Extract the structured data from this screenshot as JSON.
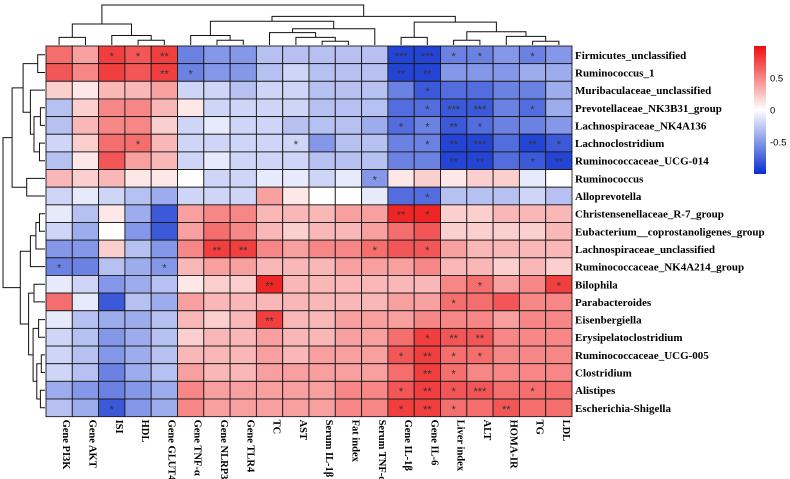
{
  "chart_data": {
    "type": "heatmap",
    "title": "",
    "rows": [
      "Firmicutes_unclassified",
      "Ruminococcus_1",
      "Muribaculaceae_unclassified",
      "Prevotellaceae_NK3B31_group",
      "Lachnospiraceae_NK4A136",
      "Lachnoclostridium",
      "Ruminococcaceae_UCG-014",
      "Ruminococcus",
      "Alloprevotella",
      "Christensenellaceae_R-7_group",
      "Eubacterium__coprostanoligenes_group",
      "Lachnospiraceae_unclassified",
      "Ruminococcaceae_NK4A214_group",
      "Bilophila",
      "Parabacteroides",
      "Eisenbergiella",
      "Erysipelatoclostridium",
      "Ruminococcaceae_UCG-005",
      "Clostridium",
      "Alistipes",
      "Escherichia-Shigella"
    ],
    "columns": [
      "Gene PI3K",
      "Gene AKT",
      "ISI",
      "HDL",
      "Gene GLUT4",
      "Gene TNF-α",
      "Gene NLRP3",
      "Gene TLR4",
      "TC",
      "AST",
      "Serum IL-1β",
      "Fat index",
      "Serum TNF-α",
      "Gene IL-1β",
      "Gene IL-6",
      "Liver index",
      "ALT",
      "HOMA-IR",
      "TG",
      "LDL"
    ],
    "values": [
      [
        0.6,
        0.4,
        0.8,
        0.7,
        0.8,
        -0.6,
        -0.5,
        -0.5,
        -0.3,
        -0.3,
        -0.3,
        -0.3,
        -0.3,
        -0.9,
        -0.9,
        -0.6,
        -0.6,
        -0.5,
        -0.6,
        -0.5
      ],
      [
        0.7,
        0.5,
        0.8,
        0.7,
        0.8,
        -0.6,
        -0.5,
        -0.5,
        -0.3,
        -0.2,
        -0.3,
        -0.3,
        -0.3,
        -0.9,
        -0.9,
        -0.5,
        -0.5,
        -0.5,
        -0.4,
        -0.4
      ],
      [
        0.2,
        0.1,
        0.3,
        0.3,
        0.4,
        -0.2,
        -0.2,
        -0.3,
        -0.2,
        -0.2,
        -0.3,
        -0.3,
        -0.3,
        -0.6,
        -0.8,
        -0.7,
        -0.7,
        -0.6,
        -0.6,
        -0.4
      ],
      [
        -0.3,
        0.2,
        0.5,
        0.5,
        0.3,
        0.1,
        -0.2,
        -0.2,
        -0.2,
        -0.2,
        -0.3,
        -0.3,
        -0.3,
        -0.7,
        -0.7,
        -0.8,
        -0.8,
        -0.6,
        -0.7,
        -0.4
      ],
      [
        -0.3,
        0.3,
        0.5,
        0.5,
        0.2,
        -0.2,
        -0.1,
        -0.2,
        -0.2,
        -0.3,
        -0.3,
        -0.3,
        -0.4,
        -0.7,
        -0.6,
        -0.8,
        -0.7,
        -0.6,
        -0.6,
        -0.5
      ],
      [
        -0.2,
        0.2,
        0.6,
        0.6,
        0.3,
        -0.2,
        -0.2,
        -0.2,
        -0.2,
        -0.2,
        -0.5,
        -0.3,
        -0.3,
        -0.6,
        -0.6,
        -0.9,
        -0.9,
        -0.7,
        -0.9,
        -0.8
      ],
      [
        -0.3,
        0.1,
        0.7,
        0.4,
        0.3,
        -0.2,
        -0.1,
        -0.2,
        -0.2,
        -0.2,
        -0.3,
        -0.3,
        -0.3,
        -0.6,
        -0.6,
        -0.9,
        -0.9,
        -0.7,
        -0.8,
        -0.9
      ],
      [
        0.3,
        0.2,
        0.3,
        0.1,
        0.1,
        0.0,
        -0.2,
        -0.2,
        -0.1,
        -0.1,
        -0.2,
        -0.1,
        -0.5,
        0.1,
        0.2,
        0.1,
        0.2,
        0.2,
        -0.1,
        0.0
      ],
      [
        -0.2,
        -0.1,
        -0.2,
        -0.3,
        -0.4,
        -0.2,
        -0.2,
        -0.2,
        0.4,
        0.1,
        0.0,
        0.0,
        -0.1,
        -0.7,
        -0.7,
        -0.3,
        -0.3,
        -0.3,
        -0.2,
        -0.3
      ],
      [
        -0.1,
        -0.3,
        0.1,
        -0.4,
        -0.8,
        0.4,
        0.5,
        0.5,
        0.3,
        0.3,
        0.3,
        0.4,
        0.4,
        0.9,
        0.9,
        0.2,
        0.2,
        0.3,
        0.3,
        0.3
      ],
      [
        -0.2,
        -0.4,
        0.0,
        -0.5,
        -0.8,
        0.4,
        0.6,
        0.5,
        0.3,
        0.2,
        0.3,
        0.3,
        0.4,
        0.6,
        0.7,
        0.2,
        0.2,
        0.2,
        0.2,
        0.3
      ],
      [
        -0.5,
        -0.5,
        0.2,
        -0.3,
        -0.5,
        0.5,
        0.8,
        0.8,
        0.5,
        0.4,
        0.5,
        0.5,
        0.6,
        0.7,
        0.7,
        0.4,
        0.3,
        0.3,
        0.3,
        0.3
      ],
      [
        -0.6,
        -0.6,
        -0.3,
        -0.4,
        -0.5,
        0.3,
        0.4,
        0.4,
        0.3,
        0.3,
        0.3,
        0.4,
        0.4,
        0.4,
        0.5,
        0.3,
        0.3,
        0.2,
        0.3,
        0.2
      ],
      [
        -0.1,
        -0.2,
        -0.5,
        -0.4,
        -0.3,
        0.1,
        0.2,
        0.2,
        0.9,
        0.3,
        0.3,
        0.3,
        0.3,
        0.3,
        0.3,
        0.5,
        0.6,
        0.4,
        0.5,
        0.8
      ],
      [
        0.6,
        -0.1,
        -0.8,
        -0.3,
        -0.4,
        0.4,
        0.3,
        0.3,
        0.3,
        0.3,
        0.3,
        0.3,
        0.3,
        0.4,
        0.4,
        0.6,
        0.6,
        0.7,
        0.5,
        0.5
      ],
      [
        -0.1,
        -0.3,
        -0.4,
        -0.4,
        -0.3,
        0.3,
        0.2,
        0.3,
        0.8,
        0.3,
        0.3,
        0.4,
        0.4,
        0.4,
        0.5,
        0.5,
        0.5,
        0.4,
        0.5,
        0.5
      ],
      [
        -0.2,
        -0.3,
        -0.5,
        -0.4,
        -0.3,
        0.2,
        0.3,
        0.3,
        0.4,
        0.3,
        0.3,
        0.4,
        0.4,
        0.6,
        0.8,
        0.7,
        0.7,
        0.5,
        0.5,
        0.5
      ],
      [
        -0.2,
        -0.3,
        -0.5,
        -0.4,
        -0.3,
        0.3,
        0.3,
        0.3,
        0.4,
        0.3,
        0.4,
        0.4,
        0.4,
        0.7,
        0.8,
        0.6,
        0.6,
        0.5,
        0.5,
        0.5
      ],
      [
        -0.2,
        -0.3,
        -0.6,
        -0.4,
        -0.3,
        0.4,
        0.3,
        0.3,
        0.4,
        0.4,
        0.4,
        0.4,
        0.4,
        0.6,
        0.8,
        0.6,
        0.5,
        0.5,
        0.5,
        0.5
      ],
      [
        -0.4,
        -0.5,
        -0.6,
        -0.5,
        -0.4,
        0.5,
        0.4,
        0.4,
        0.4,
        0.4,
        0.4,
        0.5,
        0.5,
        0.7,
        0.8,
        0.7,
        0.7,
        0.6,
        0.6,
        0.6
      ],
      [
        -0.3,
        -0.4,
        -0.8,
        -0.5,
        -0.4,
        0.5,
        0.4,
        0.4,
        0.4,
        0.4,
        0.4,
        0.5,
        0.5,
        0.8,
        0.8,
        0.6,
        0.6,
        0.7,
        0.6,
        0.6
      ]
    ],
    "stars": [
      [
        "",
        "",
        "*",
        "*",
        "**",
        "",
        "",
        "",
        "",
        "",
        "",
        "",
        "",
        "***",
        "***",
        "*",
        "*",
        "",
        "*",
        ""
      ],
      [
        "",
        "",
        "",
        "",
        "**",
        "*",
        "",
        "",
        "",
        "",
        "",
        "",
        "",
        "**",
        "**",
        "",
        "",
        "",
        "",
        ""
      ],
      [
        "",
        "",
        "",
        "",
        "",
        "",
        "",
        "",
        "",
        "",
        "",
        "",
        "",
        "",
        "*",
        "",
        "",
        "",
        "",
        ""
      ],
      [
        "",
        "",
        "",
        "",
        "",
        "",
        "",
        "",
        "",
        "",
        "",
        "",
        "",
        "",
        "*",
        "***",
        "***",
        "",
        "*",
        ""
      ],
      [
        "",
        "",
        "",
        "",
        "",
        "",
        "",
        "",
        "",
        "",
        "",
        "",
        "",
        "*",
        "*",
        "**",
        "*",
        "",
        "",
        ""
      ],
      [
        "",
        "",
        "",
        "*",
        "",
        "",
        "",
        "",
        "",
        "*",
        "",
        "",
        "",
        "",
        "*",
        "**",
        "***",
        "",
        "**",
        "*"
      ],
      [
        "",
        "",
        "",
        "",
        "",
        "",
        "",
        "",
        "",
        "",
        "",
        "",
        "",
        "",
        "",
        "**",
        "**",
        "",
        "*",
        "**"
      ],
      [
        "",
        "",
        "",
        "",
        "",
        "",
        "",
        "",
        "",
        "",
        "",
        "",
        "*",
        "",
        "",
        "",
        "",
        "",
        "",
        ""
      ],
      [
        "",
        "",
        "",
        "",
        "",
        "",
        "",
        "",
        "",
        "",
        "",
        "",
        "",
        "",
        "*",
        "",
        "",
        "",
        "",
        ""
      ],
      [
        "",
        "",
        "",
        "",
        "",
        "",
        "",
        "",
        "",
        "",
        "",
        "",
        "",
        "**",
        "*",
        "",
        "",
        "",
        "",
        ""
      ],
      [
        "",
        "",
        "",
        "",
        "",
        "",
        "",
        "",
        "",
        "",
        "",
        "",
        "",
        "",
        "",
        "",
        "",
        "",
        "",
        ""
      ],
      [
        "",
        "",
        "",
        "",
        "",
        "",
        "**",
        "**",
        "",
        "",
        "",
        "",
        "*",
        "",
        "*",
        "",
        "",
        "",
        "",
        ""
      ],
      [
        "*",
        "",
        "",
        "",
        "*",
        "",
        "",
        "",
        "",
        "",
        "",
        "",
        "",
        "",
        "",
        "",
        "",
        "",
        "",
        ""
      ],
      [
        "",
        "",
        "",
        "",
        "",
        "",
        "",
        "",
        "**",
        "",
        "",
        "",
        "",
        "",
        "",
        "",
        "*",
        "",
        "",
        "*"
      ],
      [
        "",
        "",
        "",
        "",
        "",
        "",
        "",
        "",
        "",
        "",
        "",
        "",
        "",
        "",
        "",
        "*",
        "",
        "",
        "",
        ""
      ],
      [
        "",
        "",
        "",
        "",
        "",
        "",
        "",
        "",
        "**",
        "",
        "",
        "",
        "",
        "",
        "",
        "",
        "",
        "",
        "",
        ""
      ],
      [
        "",
        "",
        "",
        "",
        "",
        "",
        "",
        "",
        "",
        "",
        "",
        "",
        "",
        "",
        "*",
        "**",
        "**",
        "",
        "",
        ""
      ],
      [
        "",
        "",
        "",
        "",
        "",
        "",
        "",
        "",
        "",
        "",
        "",
        "",
        "",
        "*",
        "**",
        "*",
        "*",
        "",
        "",
        ""
      ],
      [
        "",
        "",
        "",
        "",
        "",
        "",
        "",
        "",
        "",
        "",
        "",
        "",
        "",
        "",
        "**",
        "*",
        "",
        "",
        "",
        ""
      ],
      [
        "",
        "",
        "",
        "",
        "",
        "",
        "",
        "",
        "",
        "",
        "",
        "",
        "",
        "*",
        "**",
        "*",
        "***",
        "",
        "*",
        ""
      ],
      [
        "",
        "",
        "*",
        "",
        "",
        "",
        "",
        "",
        "",
        "",
        "",
        "",
        "",
        "*",
        "**",
        "*",
        "",
        "**",
        "",
        ""
      ]
    ],
    "color_scale": {
      "min": -1,
      "max": 1,
      "low_color": "#0a2fd0",
      "mid_color": "#ffffff",
      "high_color": "#ee0e0e",
      "ticks": [
        0.5,
        0,
        -0.5
      ],
      "tick_labels": [
        "0.5",
        "0",
        "-0.5"
      ]
    },
    "legend_position": "top-right",
    "cell_border_color": "#1a1a1a"
  }
}
